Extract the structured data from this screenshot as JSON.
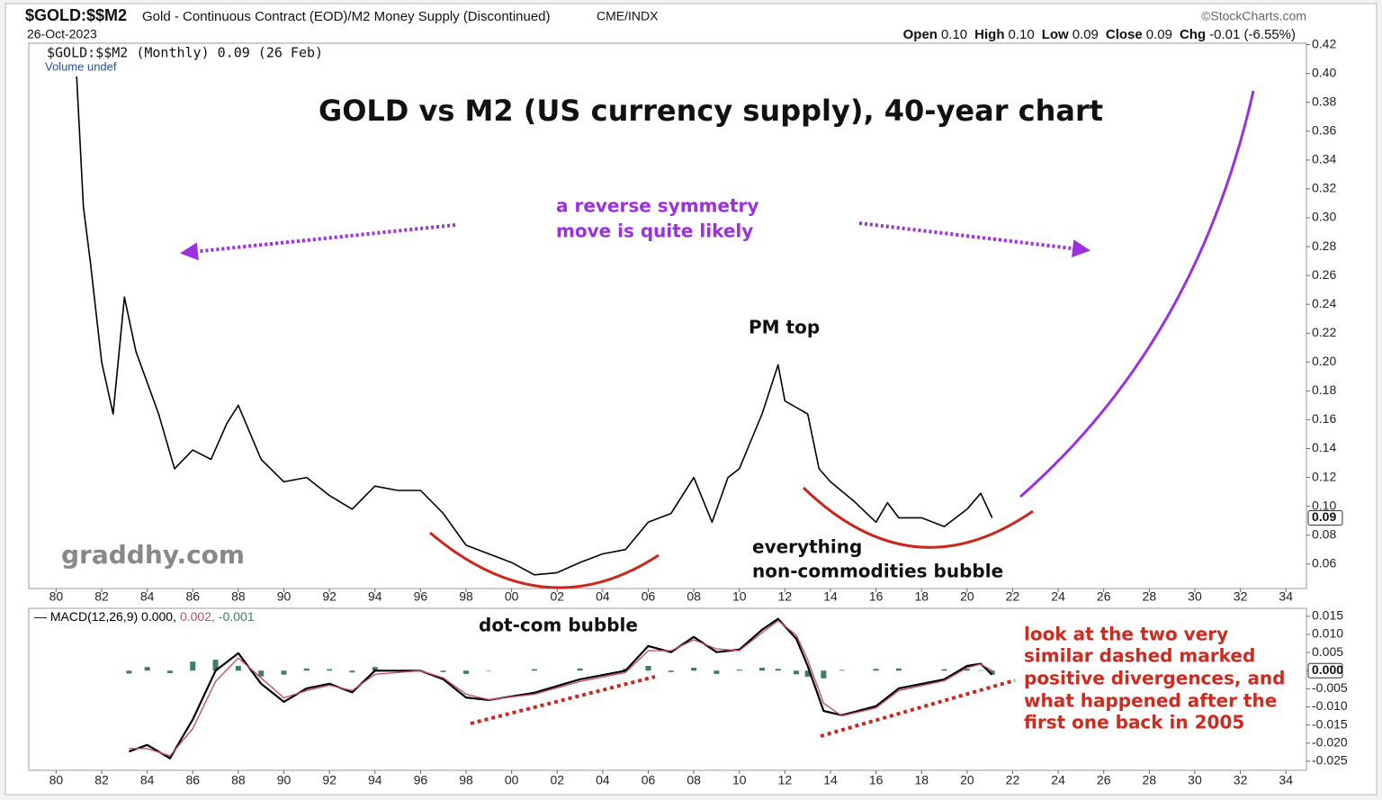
{
  "chart_data": [
    {
      "type": "line",
      "symbol": "$GOLD:$$M2",
      "description": "Gold - Continuous Contract (EOD)/M2 Money Supply (Discontinued)",
      "exchange": "CME/INDX",
      "date": "26-Oct-2023",
      "source": "©StockCharts.com",
      "quote": [
        {
          "label": "Open",
          "value": "0.10"
        },
        {
          "label": "High",
          "value": "0.10"
        },
        {
          "label": "Low",
          "value": "0.09"
        },
        {
          "label": "Close",
          "value": "0.09"
        },
        {
          "label": "Chg",
          "value": "-0.01 (-6.55%)"
        }
      ],
      "title": "GOLD vs M2 (US currency supply), 40-year chart",
      "legend": "$GOLD:$$M2 (Monthly) 0.09 (26 Feb)",
      "volume_label": "Volume undef",
      "annotations": [
        "a reverse symmetry",
        "move is quite likely",
        "PM top",
        "everything",
        "non-commodities bubble",
        "graddhy.com"
      ],
      "last_value_label": "0.09",
      "xlim": [
        1978.8,
        2034.9
      ],
      "ylim": [
        0.043,
        0.421
      ],
      "grid": false,
      "xticks": [
        {
          "value": 1980,
          "label": "80"
        },
        {
          "value": 1982,
          "label": "82"
        },
        {
          "value": 1984,
          "label": "84"
        },
        {
          "value": 1986,
          "label": "86"
        },
        {
          "value": 1988,
          "label": "88"
        },
        {
          "value": 1990,
          "label": "90"
        },
        {
          "value": 1992,
          "label": "92"
        },
        {
          "value": 1994,
          "label": "94"
        },
        {
          "value": 1996,
          "label": "96"
        },
        {
          "value": 1998,
          "label": "98"
        },
        {
          "value": 2000,
          "label": "00"
        },
        {
          "value": 2002,
          "label": "02"
        },
        {
          "value": 2004,
          "label": "04"
        },
        {
          "value": 2006,
          "label": "06"
        },
        {
          "value": 2008,
          "label": "08"
        },
        {
          "value": 2010,
          "label": "10"
        },
        {
          "value": 2012,
          "label": "12"
        },
        {
          "value": 2014,
          "label": "14"
        },
        {
          "value": 2016,
          "label": "16"
        },
        {
          "value": 2018,
          "label": "18"
        },
        {
          "value": 2020,
          "label": "20"
        },
        {
          "value": 2022,
          "label": "22"
        },
        {
          "value": 2024,
          "label": "24"
        },
        {
          "value": 2026,
          "label": "26"
        },
        {
          "value": 2028,
          "label": "28"
        },
        {
          "value": 2030,
          "label": "30"
        },
        {
          "value": 2032,
          "label": "32"
        },
        {
          "value": 2034,
          "label": "34"
        }
      ],
      "yticks": [
        0.06,
        0.08,
        {
          "value": 0.1,
          "label": "0.10"
        },
        0.12,
        0.14,
        0.16,
        0.18,
        {
          "value": 0.2,
          "label": "0.20"
        },
        0.22,
        0.24,
        0.26,
        0.28,
        {
          "value": 0.3,
          "label": "0.30"
        },
        0.32,
        0.34,
        0.36,
        0.38,
        {
          "value": 0.4,
          "label": "0.40"
        },
        0.42
      ],
      "x": [
        1980.9,
        1981.2,
        1981.5,
        1982,
        1982.5,
        1983,
        1983.5,
        1984.5,
        1985.2,
        1986,
        1986.8,
        1987.5,
        1988,
        1989,
        1990,
        1991,
        1992,
        1993,
        1994,
        1995,
        1996,
        1997,
        1998,
        1999,
        2000,
        2001,
        2002,
        2003,
        2004,
        2005,
        2006,
        2007,
        2008,
        2008.8,
        2009.5,
        2010,
        2011,
        2011.7,
        2012,
        2013,
        2013.5,
        2014,
        2015,
        2016,
        2016.5,
        2017,
        2018,
        2019,
        2020,
        2020.6,
        2021.1
      ],
      "series": [
        {
          "name": "$GOLD:$$M2",
          "color": "#000000",
          "values": [
            0.398,
            0.3075,
            0.27,
            0.2,
            0.164,
            0.245,
            0.2075,
            0.164,
            0.126,
            0.139,
            0.1325,
            0.1575,
            0.17,
            0.1325,
            0.117,
            0.12,
            0.1075,
            0.098,
            0.114,
            0.111,
            0.111,
            0.095,
            0.073,
            0.067,
            0.061,
            0.0525,
            0.054,
            0.061,
            0.067,
            0.07,
            0.089,
            0.095,
            0.12,
            0.089,
            0.12,
            0.126,
            0.164,
            0.198,
            0.173,
            0.164,
            0.126,
            0.117,
            0.104,
            0.089,
            0.1025,
            0.092,
            0.092,
            0.086,
            0.098,
            0.109,
            0.092
          ]
        }
      ]
    },
    {
      "type": "line",
      "legend": [
        "MACD(12,26,9) 0.000,",
        "0.002,",
        "-0.001"
      ],
      "annotations": [
        "dot-com bubble",
        "look at the two very",
        "similar dashed marked",
        "positive divergences, and",
        "what happened after the",
        "first one back in 2005"
      ],
      "last_value_label": "0.000",
      "xlim": [
        1978.8,
        2034.9
      ],
      "ylim": [
        -0.0275,
        0.0172
      ],
      "grid": false,
      "xticks": [
        {
          "value": 1980,
          "label": "80"
        },
        {
          "value": 1982,
          "label": "82"
        },
        {
          "value": 1984,
          "label": "84"
        },
        {
          "value": 1986,
          "label": "86"
        },
        {
          "value": 1988,
          "label": "88"
        },
        {
          "value": 1990,
          "label": "90"
        },
        {
          "value": 1992,
          "label": "92"
        },
        {
          "value": 1994,
          "label": "94"
        },
        {
          "value": 1996,
          "label": "96"
        },
        {
          "value": 1998,
          "label": "98"
        },
        {
          "value": 2000,
          "label": "00"
        },
        {
          "value": 2002,
          "label": "02"
        },
        {
          "value": 2004,
          "label": "04"
        },
        {
          "value": 2006,
          "label": "06"
        },
        {
          "value": 2008,
          "label": "08"
        },
        {
          "value": 2010,
          "label": "10"
        },
        {
          "value": 2012,
          "label": "12"
        },
        {
          "value": 2014,
          "label": "14"
        },
        {
          "value": 2016,
          "label": "16"
        },
        {
          "value": 2018,
          "label": "18"
        },
        {
          "value": 2020,
          "label": "20"
        },
        {
          "value": 2022,
          "label": "22"
        },
        {
          "value": 2024,
          "label": "24"
        },
        {
          "value": 2026,
          "label": "26"
        },
        {
          "value": 2028,
          "label": "28"
        },
        {
          "value": 2030,
          "label": "30"
        },
        {
          "value": 2032,
          "label": "32"
        },
        {
          "value": 2034,
          "label": "34"
        }
      ],
      "yticks": [
        0.015,
        {
          "value": 0.01,
          "label": "0.010"
        },
        0.005,
        {
          "value": 0,
          "label": "0.000"
        },
        -0.005,
        {
          "value": -0.01,
          "label": "-0.010"
        },
        -0.015,
        {
          "value": -0.02,
          "label": "-0.020"
        },
        -0.025
      ],
      "x": [
        1983.2,
        1984,
        1985,
        1986,
        1987,
        1988,
        1989,
        1990,
        1991,
        1992,
        1993,
        1994,
        1996,
        1997,
        1998,
        1999,
        2001,
        2003,
        2005,
        2006,
        2007,
        2008,
        2009,
        2010,
        2011,
        2011.7,
        2012.5,
        2013,
        2013.7,
        2014.5,
        2016,
        2017,
        2019,
        2020,
        2020.6,
        2021.1
      ],
      "series": [
        {
          "name": "MACD",
          "color": "#000000",
          "values": [
            -0.0223,
            -0.0205,
            -0.0242,
            -0.0135,
            0.0,
            0.0048,
            -0.0036,
            -0.0086,
            -0.0049,
            -0.0036,
            -0.006,
            0.0,
            0.0,
            -0.0024,
            -0.0074,
            -0.0081,
            -0.0061,
            -0.0024,
            0.0,
            0.0068,
            0.0051,
            0.0093,
            0.0051,
            0.0058,
            0.0113,
            0.0143,
            0.0088,
            0.0013,
            -0.0111,
            -0.0123,
            -0.0098,
            -0.0049,
            -0.0024,
            0.0013,
            0.0019,
            -0.0011
          ]
        },
        {
          "name": "Signal",
          "color": "#c2506c",
          "values": [
            -0.0215,
            -0.0215,
            -0.0235,
            -0.016,
            -0.003,
            0.0035,
            -0.002,
            -0.0075,
            -0.0055,
            -0.004,
            -0.0055,
            -0.001,
            0.0,
            -0.002,
            -0.0065,
            -0.008,
            -0.0065,
            -0.003,
            -0.0005,
            0.0055,
            0.0055,
            0.0085,
            0.006,
            0.0055,
            0.0105,
            0.0138,
            0.0098,
            0.003,
            -0.009,
            -0.0125,
            -0.0103,
            -0.0055,
            -0.0028,
            0.0008,
            0.0018,
            0.0
          ]
        },
        {
          "name": "Histogram",
          "type": "bar",
          "color": "#3f7d5e",
          "values": [
            -0.0008,
            0.001,
            -0.0007,
            0.0025,
            0.003,
            0.0013,
            -0.0016,
            -0.0011,
            0.0006,
            0.0004,
            -0.0005,
            0.001,
            0.0,
            -0.0004,
            -0.0009,
            -0.0001,
            0.0004,
            0.0006,
            0.0005,
            0.0013,
            -0.0004,
            0.0008,
            -0.0009,
            0.0003,
            0.0008,
            0.0005,
            -0.001,
            -0.0017,
            -0.0021,
            0.0002,
            0.0005,
            0.0006,
            0.0004,
            0.0005,
            0.0001,
            -0.0011
          ]
        }
      ]
    }
  ]
}
